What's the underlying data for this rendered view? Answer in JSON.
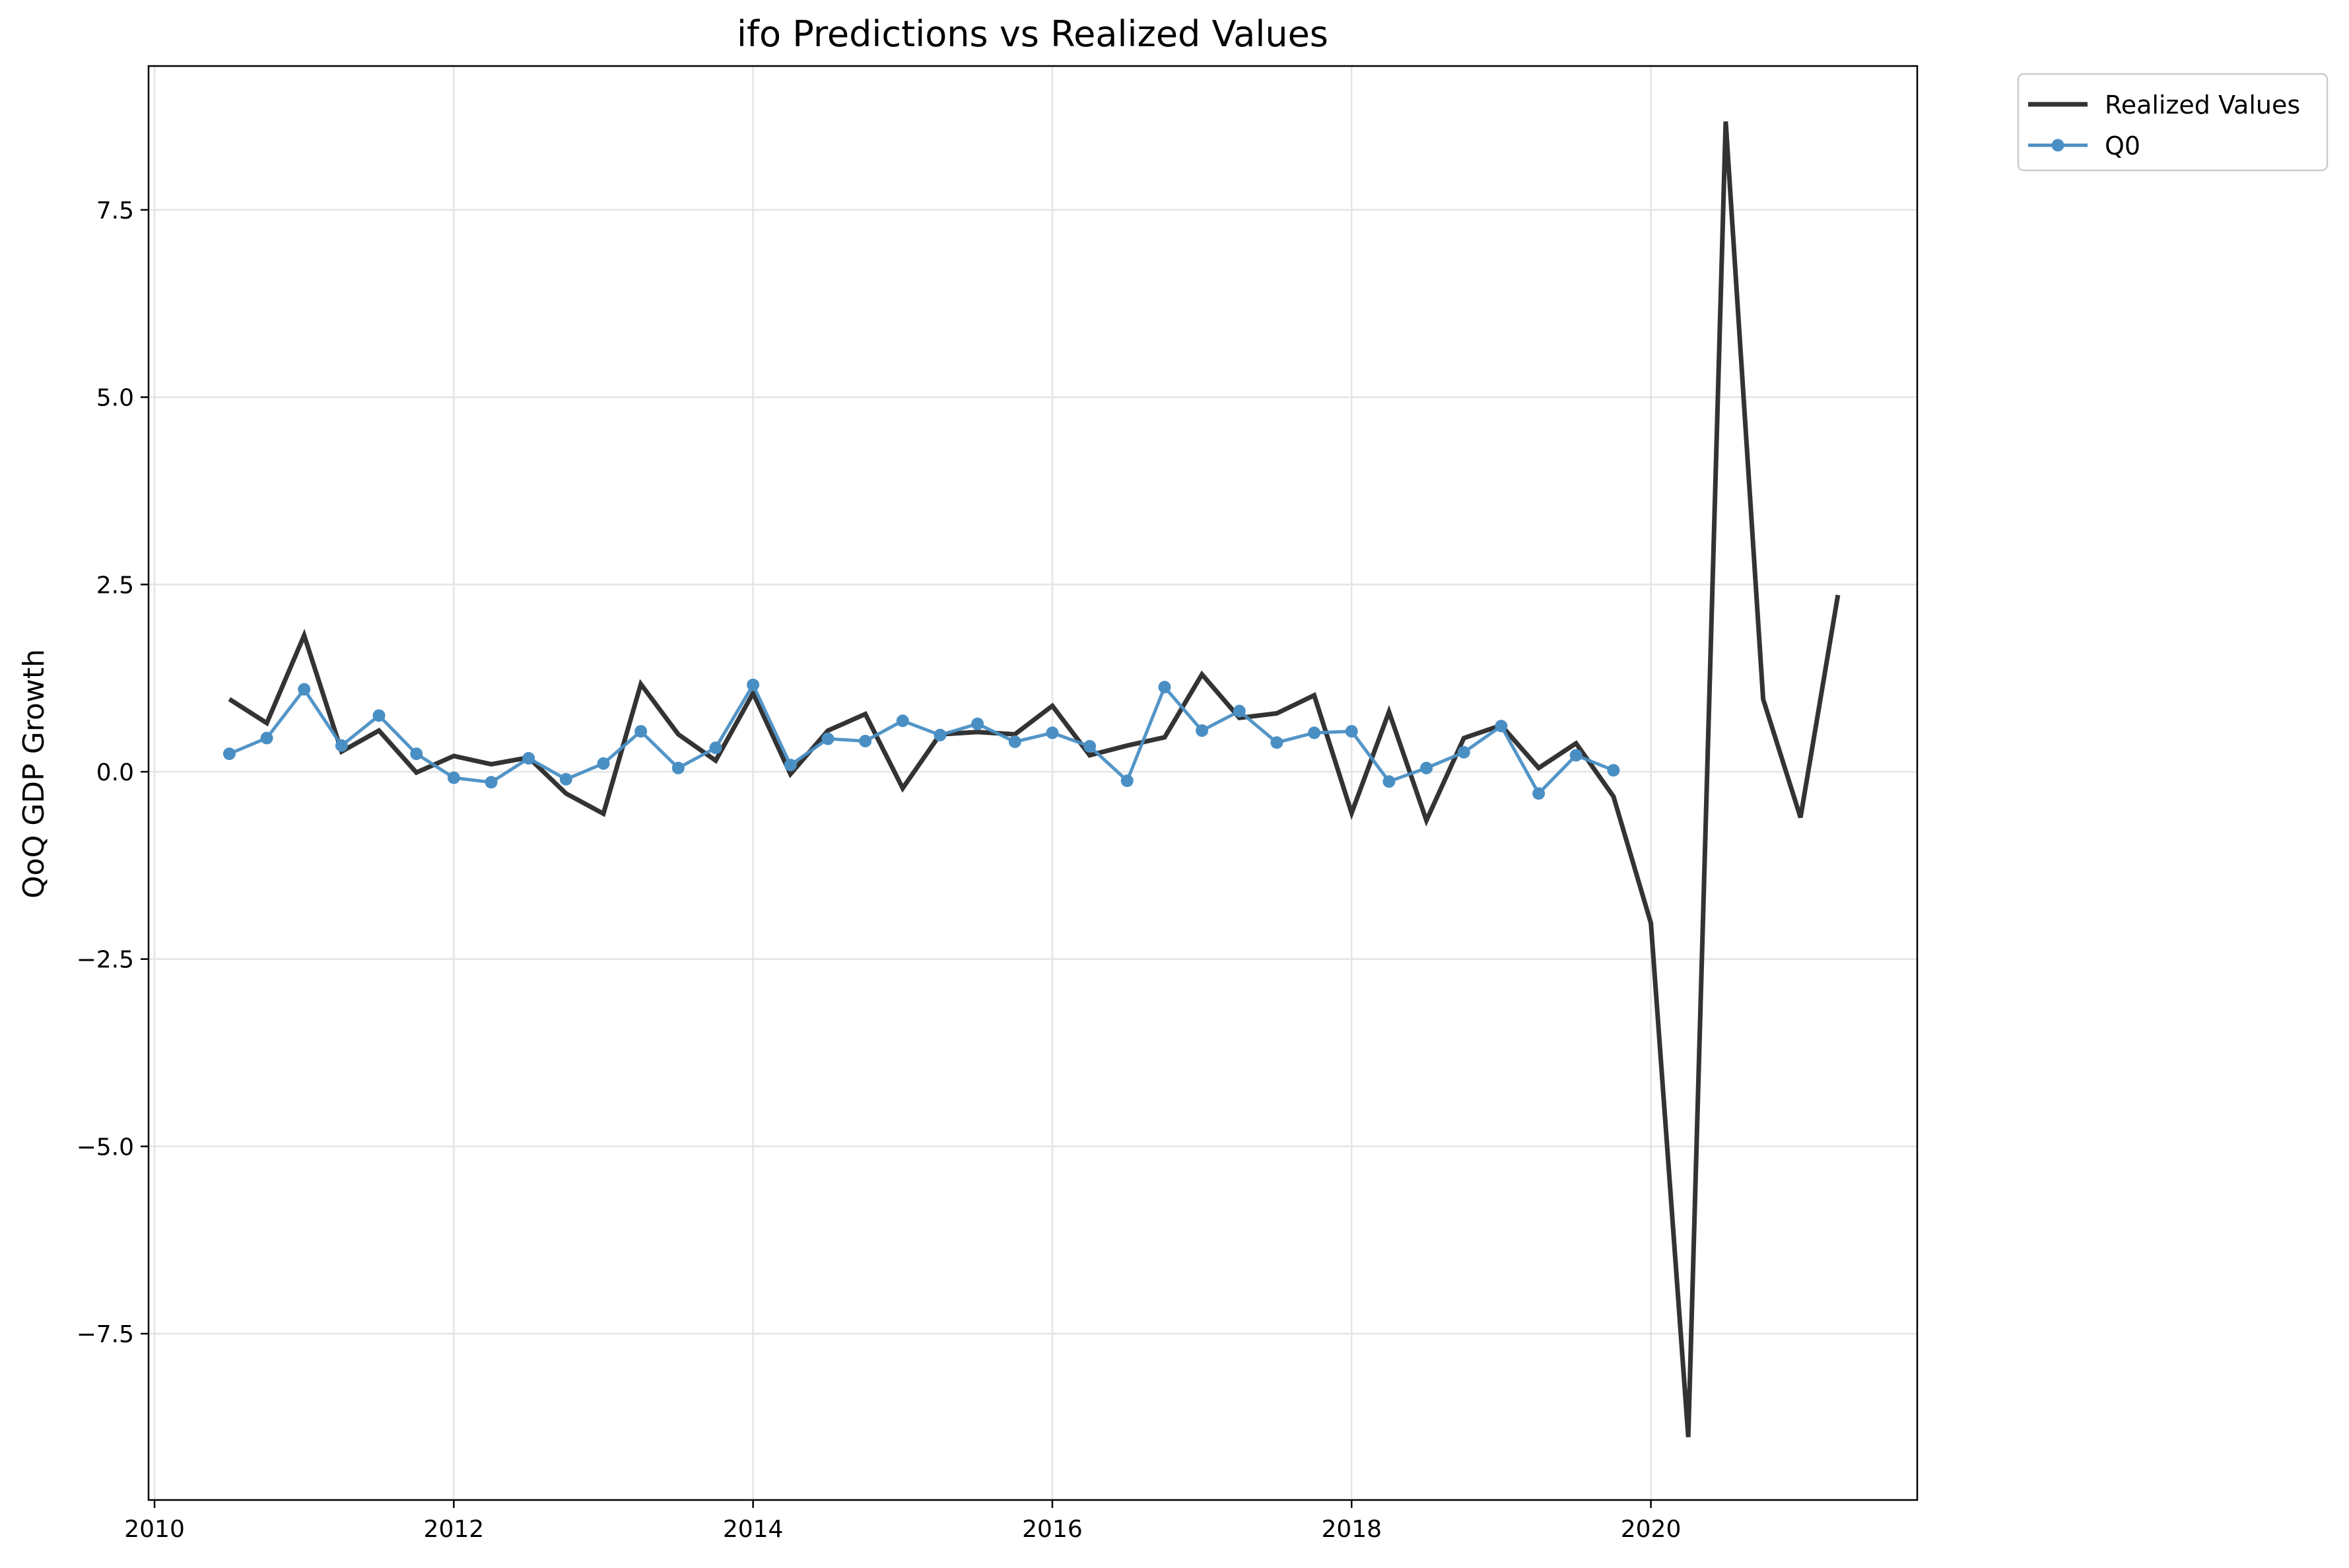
{
  "chart_data": {
    "type": "line",
    "title": "ifo Predictions vs Realized Values",
    "xlabel": "",
    "ylabel": "QoQ GDP Growth",
    "xlim": [
      2009.96,
      2021.78
    ],
    "ylim": [
      -9.72,
      9.42
    ],
    "x_ticks": [
      2010,
      2012,
      2014,
      2016,
      2018,
      2020
    ],
    "x_tick_labels": [
      "2010",
      "2012",
      "2014",
      "2016",
      "2018",
      "2020"
    ],
    "y_ticks": [
      -7.5,
      -5.0,
      -2.5,
      0.0,
      2.5,
      5.0,
      7.5
    ],
    "y_tick_labels": [
      "−7.5",
      "−5.0",
      "−2.5",
      "0.0",
      "2.5",
      "5.0",
      "7.5"
    ],
    "grid": true,
    "legend": "outside-top-right",
    "series": [
      {
        "name": "Realized Values",
        "color": "#333333",
        "style": "line",
        "x": [
          2010.5,
          2010.75,
          2011.0,
          2011.25,
          2011.5,
          2011.75,
          2012.0,
          2012.25,
          2012.5,
          2012.75,
          2013.0,
          2013.25,
          2013.5,
          2013.75,
          2014.0,
          2014.25,
          2014.5,
          2014.75,
          2015.0,
          2015.25,
          2015.5,
          2015.75,
          2016.0,
          2016.25,
          2016.5,
          2016.75,
          2017.0,
          2017.25,
          2017.5,
          2017.75,
          2018.0,
          2018.25,
          2018.5,
          2018.75,
          2019.0,
          2019.25,
          2019.5,
          2019.75,
          2020.0,
          2020.25,
          2020.5,
          2020.75,
          2021.0,
          2021.25
        ],
        "values": [
          0.97,
          0.65,
          1.82,
          0.27,
          0.55,
          -0.01,
          0.21,
          0.1,
          0.19,
          -0.29,
          -0.56,
          1.17,
          0.5,
          0.15,
          1.05,
          -0.03,
          0.55,
          0.77,
          -0.22,
          0.5,
          0.53,
          0.5,
          0.88,
          0.22,
          0.35,
          0.46,
          1.3,
          0.72,
          0.78,
          1.02,
          -0.55,
          0.8,
          -0.65,
          0.45,
          0.62,
          0.05,
          0.38,
          -0.33,
          -2.02,
          -8.88,
          8.68,
          0.97,
          -0.61,
          2.36
        ]
      },
      {
        "name": "Q0",
        "color": "#4a8fc4",
        "style": "line-markers",
        "x": [
          2010.5,
          2010.75,
          2011.0,
          2011.25,
          2011.5,
          2011.75,
          2012.0,
          2012.25,
          2012.5,
          2012.75,
          2013.0,
          2013.25,
          2013.5,
          2013.75,
          2014.0,
          2014.25,
          2014.5,
          2014.75,
          2015.0,
          2015.25,
          2015.5,
          2015.75,
          2016.0,
          2016.25,
          2016.5,
          2016.75,
          2017.0,
          2017.25,
          2017.5,
          2017.75,
          2018.0,
          2018.25,
          2018.5,
          2018.75,
          2019.0,
          2019.25,
          2019.5,
          2019.75
        ],
        "values": [
          0.24,
          0.45,
          1.1,
          0.35,
          0.75,
          0.24,
          -0.08,
          -0.14,
          0.18,
          -0.1,
          0.11,
          0.54,
          0.05,
          0.32,
          1.16,
          0.09,
          0.44,
          0.41,
          0.68,
          0.49,
          0.64,
          0.4,
          0.52,
          0.34,
          -0.12,
          1.13,
          0.55,
          0.81,
          0.39,
          0.52,
          0.54,
          -0.13,
          0.05,
          0.26,
          0.61,
          -0.29,
          0.22,
          0.02
        ]
      }
    ]
  }
}
